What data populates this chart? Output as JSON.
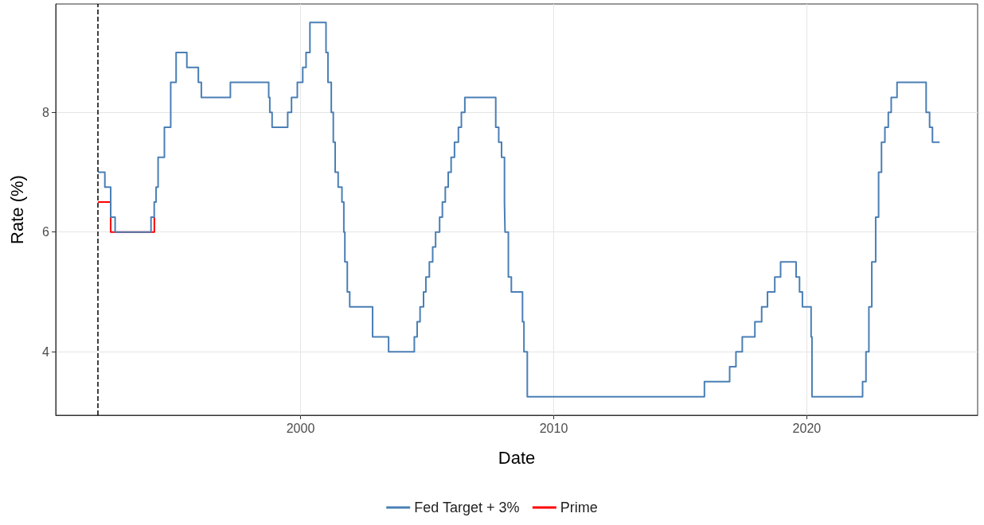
{
  "chart_data": {
    "type": "step",
    "xlabel": "Date",
    "ylabel": "Rate (%)",
    "xlim": [
      "1990-05-01",
      "2026-10-01"
    ],
    "ylim": [
      2.94,
      9.81
    ],
    "xticks": [
      {
        "value": "2000-01-01",
        "label": "2000"
      },
      {
        "value": "2010-01-01",
        "label": "2010"
      },
      {
        "value": "2020-01-01",
        "label": "2020"
      }
    ],
    "yticks": [
      4,
      6,
      8
    ],
    "grid": true,
    "legend": "bottom",
    "line_style": "solid",
    "marker": "none",
    "ref_lines": [
      {
        "axis": "x",
        "value": "1992-01-01",
        "color": "#000000",
        "line_style": "dashed"
      }
    ],
    "series": [
      {
        "name": "Prime",
        "color": "#ff0000",
        "x": [
          "1992-01-01",
          "1992-07-02",
          "1994-03-24"
        ],
        "values": [
          6.5,
          6.0,
          6.25
        ]
      },
      {
        "name": "Fed Target + 3%",
        "color": "#4a7fb5",
        "x": [
          "1992-01-01",
          "1992-04-09",
          "1992-07-02",
          "1992-09-04",
          "1994-02-04",
          "1994-03-22",
          "1994-04-18",
          "1994-05-17",
          "1994-08-16",
          "1994-11-15",
          "1995-02-01",
          "1995-07-06",
          "1995-12-19",
          "1996-01-31",
          "1997-03-25",
          "1998-09-29",
          "1998-10-15",
          "1998-11-17",
          "1999-06-30",
          "1999-08-24",
          "1999-11-16",
          "2000-02-02",
          "2000-03-21",
          "2000-05-16",
          "2001-01-03",
          "2001-01-31",
          "2001-03-20",
          "2001-04-18",
          "2001-05-15",
          "2001-06-27",
          "2001-08-21",
          "2001-09-17",
          "2001-10-02",
          "2001-11-06",
          "2001-12-11",
          "2002-11-06",
          "2003-06-25",
          "2004-06-30",
          "2004-08-10",
          "2004-09-21",
          "2004-11-10",
          "2004-12-14",
          "2005-02-02",
          "2005-03-22",
          "2005-05-03",
          "2005-06-30",
          "2005-08-09",
          "2005-09-20",
          "2005-11-01",
          "2005-12-13",
          "2006-01-31",
          "2006-03-28",
          "2006-05-10",
          "2006-06-29",
          "2007-09-18",
          "2007-10-31",
          "2007-12-11",
          "2008-01-22",
          "2008-01-30",
          "2008-03-18",
          "2008-04-30",
          "2008-10-08",
          "2008-10-29",
          "2008-12-16",
          "2015-12-16",
          "2016-12-14",
          "2017-03-15",
          "2017-06-14",
          "2017-12-13",
          "2018-03-21",
          "2018-06-13",
          "2018-09-26",
          "2018-12-19",
          "2019-07-31",
          "2019-09-18",
          "2019-10-30",
          "2020-03-03",
          "2020-03-16",
          "2022-03-16",
          "2022-05-04",
          "2022-06-15",
          "2022-07-27",
          "2022-09-21",
          "2022-11-02",
          "2022-12-14",
          "2023-02-01",
          "2023-03-22",
          "2023-05-03",
          "2023-07-26",
          "2024-09-18",
          "2024-11-07",
          "2024-12-18",
          "2025-04-01"
        ],
        "values": [
          7.0,
          6.75,
          6.25,
          6.0,
          6.25,
          6.5,
          6.75,
          7.25,
          7.75,
          8.5,
          9.0,
          8.75,
          8.5,
          8.25,
          8.5,
          8.25,
          8.0,
          7.75,
          8.0,
          8.25,
          8.5,
          8.75,
          9.0,
          9.5,
          9.0,
          8.5,
          8.0,
          7.5,
          7.0,
          6.75,
          6.5,
          6.0,
          5.5,
          5.0,
          4.75,
          4.25,
          4.0,
          4.25,
          4.5,
          4.75,
          5.0,
          5.25,
          5.5,
          5.75,
          6.0,
          6.25,
          6.5,
          6.75,
          7.0,
          7.25,
          7.5,
          7.75,
          8.0,
          8.25,
          7.75,
          7.5,
          7.25,
          6.5,
          6.0,
          5.25,
          5.0,
          4.5,
          4.0,
          3.25,
          3.5,
          3.75,
          4.0,
          4.25,
          4.5,
          4.75,
          5.0,
          5.25,
          5.5,
          5.25,
          5.0,
          4.75,
          4.25,
          3.25,
          3.5,
          4.0,
          4.75,
          5.5,
          6.25,
          7.0,
          7.5,
          7.75,
          8.0,
          8.25,
          8.5,
          8.0,
          7.75,
          7.5,
          7.5
        ]
      }
    ]
  }
}
